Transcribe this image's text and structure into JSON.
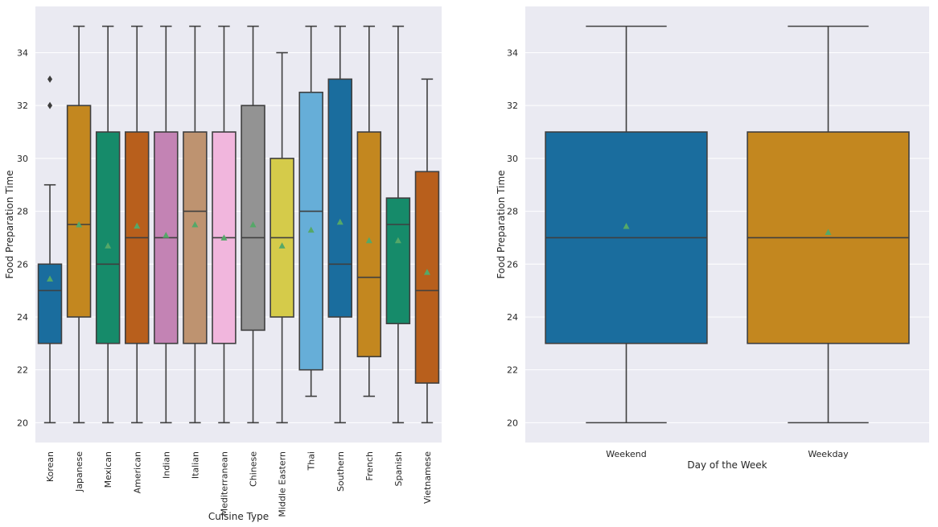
{
  "chart_data": [
    {
      "type": "box",
      "xlabel": "Cuisine Type",
      "ylabel": "Food Preparation Time",
      "ylim": [
        19.25,
        35.75
      ],
      "yticks": [
        20,
        22,
        24,
        26,
        28,
        30,
        32,
        34
      ],
      "grid": true,
      "show_means": true,
      "categories": [
        "Korean",
        "Japanese",
        "Mexican",
        "American",
        "Indian",
        "Italian",
        "Mediterranean",
        "Chinese",
        "Middle Eastern",
        "Thai",
        "Southern",
        "French",
        "Spanish",
        "Vietnamese"
      ],
      "boxes": [
        {
          "whislo": 20,
          "q1": 23,
          "med": 25,
          "q3": 26,
          "whishi": 29,
          "mean": 25.45,
          "fliers": [
            32,
            33
          ]
        },
        {
          "whislo": 20,
          "q1": 24,
          "med": 27.5,
          "q3": 32,
          "whishi": 35,
          "mean": 27.5,
          "fliers": []
        },
        {
          "whislo": 20,
          "q1": 23,
          "med": 26,
          "q3": 31,
          "whishi": 35,
          "mean": 26.7,
          "fliers": []
        },
        {
          "whislo": 20,
          "q1": 23,
          "med": 27,
          "q3": 31,
          "whishi": 35,
          "mean": 27.45,
          "fliers": []
        },
        {
          "whislo": 20,
          "q1": 23,
          "med": 27,
          "q3": 31,
          "whishi": 35,
          "mean": 27.1,
          "fliers": []
        },
        {
          "whislo": 20,
          "q1": 23,
          "med": 28,
          "q3": 31,
          "whishi": 35,
          "mean": 27.5,
          "fliers": []
        },
        {
          "whislo": 20,
          "q1": 23,
          "med": 27,
          "q3": 31,
          "whishi": 35,
          "mean": 27.0,
          "fliers": []
        },
        {
          "whislo": 20,
          "q1": 23.5,
          "med": 27,
          "q3": 32,
          "whishi": 35,
          "mean": 27.5,
          "fliers": []
        },
        {
          "whislo": 20,
          "q1": 24,
          "med": 27,
          "q3": 30,
          "whishi": 34,
          "mean": 26.7,
          "fliers": []
        },
        {
          "whislo": 21,
          "q1": 22,
          "med": 28,
          "q3": 32.5,
          "whishi": 35,
          "mean": 27.3,
          "fliers": []
        },
        {
          "whislo": 20,
          "q1": 24,
          "med": 26,
          "q3": 33,
          "whishi": 35,
          "mean": 27.6,
          "fliers": []
        },
        {
          "whislo": 21,
          "q1": 22.5,
          "med": 25.5,
          "q3": 31,
          "whishi": 35,
          "mean": 26.9,
          "fliers": []
        },
        {
          "whislo": 20,
          "q1": 23.75,
          "med": 27.5,
          "q3": 28.5,
          "whishi": 35,
          "mean": 26.9,
          "fliers": []
        },
        {
          "whislo": 20,
          "q1": 21.5,
          "med": 25,
          "q3": 29.5,
          "whishi": 33,
          "mean": 25.7,
          "fliers": []
        }
      ],
      "colors": [
        "#1a6d9e",
        "#c3871f",
        "#168b6a",
        "#b85f1c",
        "#c383b4",
        "#be9370",
        "#f1b6dd",
        "#939393",
        "#d5cb4a",
        "#66aed8",
        "#1a6d9e",
        "#c3871f",
        "#168b6a",
        "#b85f1c"
      ]
    },
    {
      "type": "box",
      "xlabel": "Day of the Week",
      "ylabel": "Food Preparation Time",
      "ylim": [
        19.25,
        35.75
      ],
      "yticks": [
        20,
        22,
        24,
        26,
        28,
        30,
        32,
        34
      ],
      "grid": true,
      "show_means": true,
      "categories": [
        "Weekend",
        "Weekday"
      ],
      "boxes": [
        {
          "whislo": 20,
          "q1": 23,
          "med": 27,
          "q3": 31,
          "whishi": 35,
          "mean": 27.44,
          "fliers": []
        },
        {
          "whislo": 20,
          "q1": 23,
          "med": 27,
          "q3": 31,
          "whishi": 35,
          "mean": 27.21,
          "fliers": []
        }
      ],
      "colors": [
        "#1a6d9e",
        "#c3871f"
      ]
    }
  ],
  "style": {
    "background": "#eaeaf2",
    "grid": "#ffffff",
    "line": "#3f3f3f",
    "mean_marker": "#55a868"
  }
}
